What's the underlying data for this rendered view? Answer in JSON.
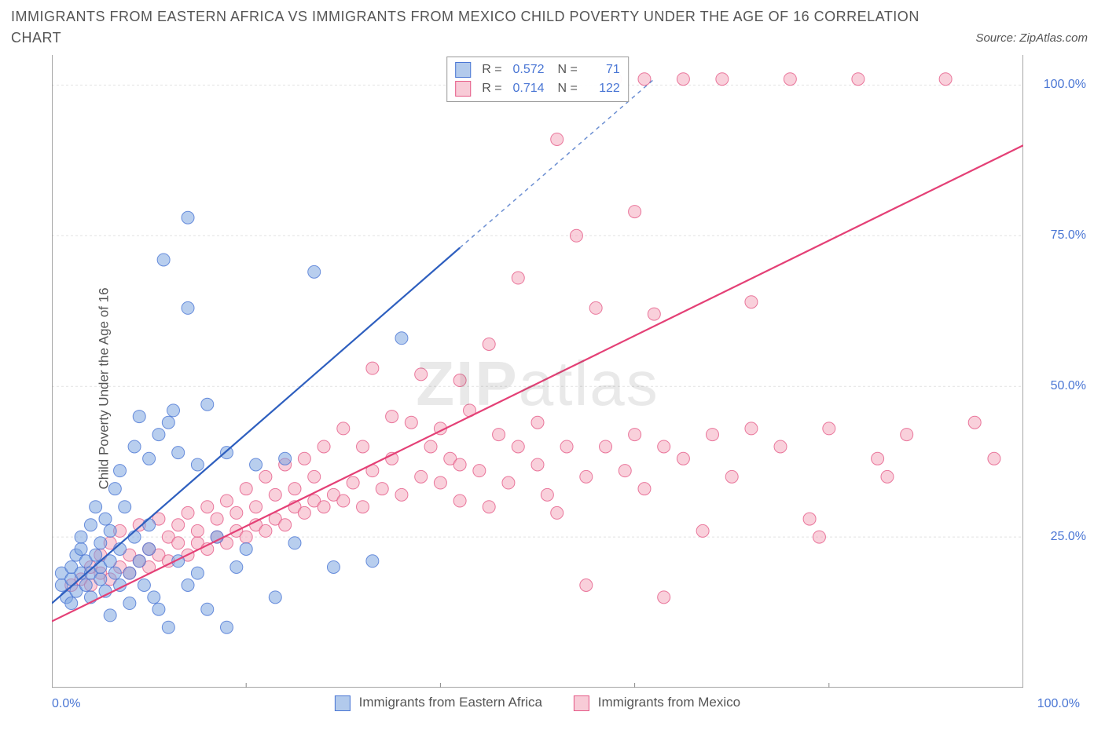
{
  "title": "IMMIGRANTS FROM EASTERN AFRICA VS IMMIGRANTS FROM MEXICO CHILD POVERTY UNDER THE AGE OF 16 CORRELATION CHART",
  "source_label": "Source: ZipAtlas.com",
  "yaxis_label": "Child Poverty Under the Age of 16",
  "watermark_a": "ZIP",
  "watermark_b": "atlas",
  "chart": {
    "type": "scatter-with-regression",
    "background_color": "#ffffff",
    "grid_color": "#e2e2e2",
    "axis_color": "#888888",
    "tick_label_color": "#4a76d4",
    "xlim": [
      0,
      100
    ],
    "ylim": [
      0,
      105
    ],
    "xtick_major": [
      0,
      20,
      40,
      60,
      80,
      100
    ],
    "ytick_major": [
      25,
      50,
      75,
      100
    ],
    "xtick_labels_shown": {
      "left": "0.0%",
      "right": "100.0%"
    },
    "ytick_labels": [
      "25.0%",
      "50.0%",
      "75.0%",
      "100.0%"
    ],
    "marker_radius": 8,
    "marker_opacity": 0.55,
    "line_width": 2.2,
    "series": [
      {
        "key": "eastern_africa",
        "label": "Immigrants from Eastern Africa",
        "point_fill": "#7ea6e0",
        "point_stroke": "#4a76d4",
        "line_color": "#2e5fbf",
        "line_dash_after_x": 42,
        "r": "0.572",
        "n": "71",
        "regression": {
          "x1": 0,
          "y1": 14,
          "x2": 42,
          "y2": 73,
          "x2_ext": 62,
          "y2_ext": 101
        },
        "points": [
          [
            1,
            17
          ],
          [
            1,
            19
          ],
          [
            1.5,
            15
          ],
          [
            2,
            18
          ],
          [
            2,
            20
          ],
          [
            2,
            14
          ],
          [
            2.5,
            22
          ],
          [
            2.5,
            16
          ],
          [
            3,
            19
          ],
          [
            3,
            23
          ],
          [
            3,
            25
          ],
          [
            3.5,
            17
          ],
          [
            3.5,
            21
          ],
          [
            4,
            19
          ],
          [
            4,
            27
          ],
          [
            4,
            15
          ],
          [
            4.5,
            22
          ],
          [
            4.5,
            30
          ],
          [
            5,
            18
          ],
          [
            5,
            24
          ],
          [
            5,
            20
          ],
          [
            5.5,
            16
          ],
          [
            5.5,
            28
          ],
          [
            6,
            21
          ],
          [
            6,
            26
          ],
          [
            6,
            12
          ],
          [
            6.5,
            19
          ],
          [
            6.5,
            33
          ],
          [
            7,
            23
          ],
          [
            7,
            17
          ],
          [
            7,
            36
          ],
          [
            7.5,
            30
          ],
          [
            8,
            19
          ],
          [
            8,
            14
          ],
          [
            8.5,
            25
          ],
          [
            8.5,
            40
          ],
          [
            9,
            21
          ],
          [
            9,
            45
          ],
          [
            9.5,
            17
          ],
          [
            10,
            23
          ],
          [
            10,
            38
          ],
          [
            10,
            27
          ],
          [
            10.5,
            15
          ],
          [
            11,
            13
          ],
          [
            11,
            42
          ],
          [
            11.5,
            71
          ],
          [
            12,
            44
          ],
          [
            12,
            10
          ],
          [
            12.5,
            46
          ],
          [
            13,
            21
          ],
          [
            13,
            39
          ],
          [
            14,
            17
          ],
          [
            14,
            63
          ],
          [
            15,
            19
          ],
          [
            15,
            37
          ],
          [
            16,
            47
          ],
          [
            16,
            13
          ],
          [
            17,
            25
          ],
          [
            18,
            10
          ],
          [
            18,
            39
          ],
          [
            19,
            20
          ],
          [
            20,
            23
          ],
          [
            21,
            37
          ],
          [
            23,
            15
          ],
          [
            24,
            38
          ],
          [
            25,
            24
          ],
          [
            27,
            69
          ],
          [
            29,
            20
          ],
          [
            33,
            21
          ],
          [
            36,
            58
          ],
          [
            14,
            78
          ]
        ]
      },
      {
        "key": "mexico",
        "label": "Immigrants from Mexico",
        "point_fill": "#f4a9bd",
        "point_stroke": "#e55a87",
        "line_color": "#e44076",
        "line_dash_after_x": null,
        "r": "0.714",
        "n": "122",
        "regression": {
          "x1": 0,
          "y1": 11,
          "x2": 100,
          "y2": 90
        },
        "points": [
          [
            2,
            17
          ],
          [
            3,
            18
          ],
          [
            4,
            17
          ],
          [
            4,
            20
          ],
          [
            5,
            19
          ],
          [
            5,
            22
          ],
          [
            6,
            18
          ],
          [
            6,
            24
          ],
          [
            7,
            20
          ],
          [
            7,
            26
          ],
          [
            8,
            19
          ],
          [
            8,
            22
          ],
          [
            9,
            21
          ],
          [
            9,
            27
          ],
          [
            10,
            20
          ],
          [
            10,
            23
          ],
          [
            11,
            22
          ],
          [
            11,
            28
          ],
          [
            12,
            21
          ],
          [
            12,
            25
          ],
          [
            13,
            24
          ],
          [
            13,
            27
          ],
          [
            14,
            22
          ],
          [
            14,
            29
          ],
          [
            15,
            24
          ],
          [
            15,
            26
          ],
          [
            16,
            23
          ],
          [
            16,
            30
          ],
          [
            17,
            25
          ],
          [
            17,
            28
          ],
          [
            18,
            24
          ],
          [
            18,
            31
          ],
          [
            19,
            26
          ],
          [
            19,
            29
          ],
          [
            20,
            25
          ],
          [
            20,
            33
          ],
          [
            21,
            27
          ],
          [
            21,
            30
          ],
          [
            22,
            26
          ],
          [
            22,
            35
          ],
          [
            23,
            28
          ],
          [
            23,
            32
          ],
          [
            24,
            27
          ],
          [
            24,
            37
          ],
          [
            25,
            30
          ],
          [
            25,
            33
          ],
          [
            26,
            29
          ],
          [
            26,
            38
          ],
          [
            27,
            31
          ],
          [
            27,
            35
          ],
          [
            28,
            30
          ],
          [
            28,
            40
          ],
          [
            29,
            32
          ],
          [
            30,
            31
          ],
          [
            30,
            43
          ],
          [
            31,
            34
          ],
          [
            32,
            30
          ],
          [
            32,
            40
          ],
          [
            33,
            36
          ],
          [
            33,
            53
          ],
          [
            34,
            33
          ],
          [
            35,
            45
          ],
          [
            35,
            38
          ],
          [
            36,
            32
          ],
          [
            37,
            44
          ],
          [
            38,
            35
          ],
          [
            38,
            52
          ],
          [
            39,
            40
          ],
          [
            40,
            34
          ],
          [
            40,
            43
          ],
          [
            41,
            38
          ],
          [
            42,
            51
          ],
          [
            42,
            31
          ],
          [
            43,
            46
          ],
          [
            44,
            36
          ],
          [
            45,
            30
          ],
          [
            45,
            57
          ],
          [
            46,
            42
          ],
          [
            47,
            34
          ],
          [
            48,
            40
          ],
          [
            48,
            68
          ],
          [
            50,
            37
          ],
          [
            50,
            44
          ],
          [
            51,
            32
          ],
          [
            52,
            29
          ],
          [
            52,
            91
          ],
          [
            53,
            40
          ],
          [
            54,
            75
          ],
          [
            55,
            35
          ],
          [
            55,
            17
          ],
          [
            56,
            63
          ],
          [
            57,
            40
          ],
          [
            58,
            101
          ],
          [
            59,
            36
          ],
          [
            60,
            42
          ],
          [
            60,
            79
          ],
          [
            61,
            33
          ],
          [
            61,
            101
          ],
          [
            62,
            62
          ],
          [
            63,
            40
          ],
          [
            63,
            15
          ],
          [
            65,
            38
          ],
          [
            65,
            101
          ],
          [
            67,
            26
          ],
          [
            68,
            42
          ],
          [
            69,
            101
          ],
          [
            70,
            35
          ],
          [
            72,
            43
          ],
          [
            72,
            64
          ],
          [
            75,
            40
          ],
          [
            76,
            101
          ],
          [
            78,
            28
          ],
          [
            79,
            25
          ],
          [
            80,
            43
          ],
          [
            83,
            101
          ],
          [
            85,
            38
          ],
          [
            86,
            35
          ],
          [
            88,
            42
          ],
          [
            92,
            101
          ],
          [
            95,
            44
          ],
          [
            97,
            38
          ],
          [
            42,
            37
          ]
        ]
      }
    ]
  },
  "legend_x": [
    {
      "label": "Immigrants from Eastern Africa",
      "fill": "#7ea6e099",
      "stroke": "#4a76d4"
    },
    {
      "label": "Immigrants from Mexico",
      "fill": "#f4a9bd99",
      "stroke": "#e55a87"
    }
  ]
}
